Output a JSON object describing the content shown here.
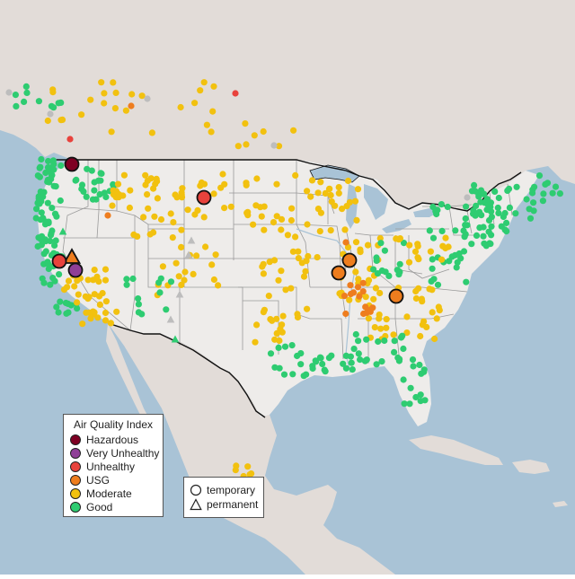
{
  "map": {
    "colors": {
      "ocean": "#a9c3d6",
      "land_us": "#eeecea",
      "land_other": "#e2dcd8",
      "state_line": "#9a9a9a",
      "border_line": "#111111",
      "river": "#a9c3d6"
    }
  },
  "legend": {
    "title": "Air Quality Index",
    "categories": [
      {
        "label": "Hazardous",
        "color": "#7e0023"
      },
      {
        "label": "Very Unhealthy",
        "color": "#8f3f97"
      },
      {
        "label": "Unhealthy",
        "color": "#e8423c"
      },
      {
        "label": "USG",
        "color": "#ee7d1e"
      },
      {
        "label": "Moderate",
        "color": "#f2c10f"
      },
      {
        "label": "Good",
        "color": "#2ecc71"
      }
    ],
    "site_types": [
      {
        "label": "temporary",
        "shape": "circle"
      },
      {
        "label": "permanent",
        "shape": "triangle"
      }
    ]
  }
}
